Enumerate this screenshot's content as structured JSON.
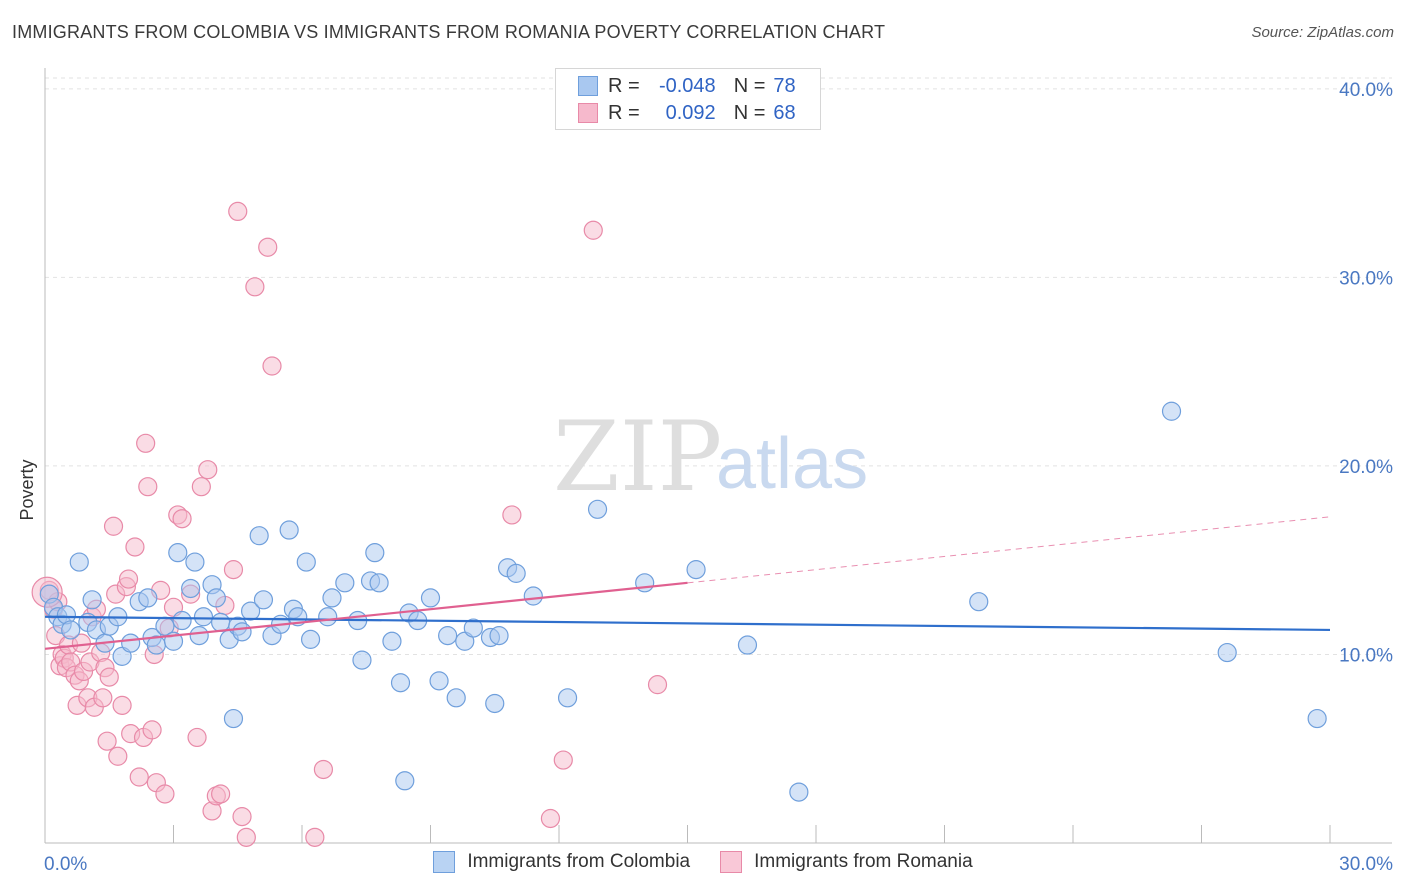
{
  "header": {
    "title": "IMMIGRANTS FROM COLOMBIA VS IMMIGRANTS FROM ROMANIA POVERTY CORRELATION CHART",
    "source": "Source: ZipAtlas.com"
  },
  "watermark": {
    "zip": "ZIP",
    "atlas": "atlas"
  },
  "legend_top": {
    "rows": [
      {
        "r_label": "R =",
        "r_value": "-0.048",
        "n_label": "N =",
        "n_value": "78"
      },
      {
        "r_label": "R =",
        "r_value": "0.092",
        "n_label": "N =",
        "n_value": "68"
      }
    ]
  },
  "legend_bottom": {
    "colombia": "Immigrants from Colombia",
    "romania": "Immigrants from Romania"
  },
  "colors": {
    "colombia_fill": "#a9c8f0",
    "colombia_stroke": "#6f9fdc",
    "colombia_line": "#2f6fcc",
    "romania_fill": "#f6b9cc",
    "romania_stroke": "#e88aa8",
    "romania_line": "#e06090",
    "tick_text": "#4a78c2"
  },
  "chart_data": {
    "type": "scatter",
    "title": "IMMIGRANTS FROM COLOMBIA VS IMMIGRANTS FROM ROMANIA POVERTY CORRELATION CHART",
    "xlabel": "",
    "ylabel": "Poverty",
    "xlim": [
      0,
      30
    ],
    "ylim": [
      0,
      41
    ],
    "x_tick_labels": [
      "0.0%",
      "30.0%"
    ],
    "y_ticks": [
      10,
      20,
      30,
      40
    ],
    "y_tick_labels": [
      "10.0%",
      "20.0%",
      "30.0%",
      "40.0%"
    ],
    "grid": true,
    "legend_position": "bottom",
    "series": [
      {
        "name": "Immigrants from Colombia",
        "r": -0.048,
        "n": 78,
        "trend": {
          "x0": 0,
          "y0": 12.0,
          "x1": 30,
          "y1": 11.3
        },
        "points": [
          [
            0.1,
            13.2
          ],
          [
            0.2,
            12.5
          ],
          [
            0.3,
            12.0
          ],
          [
            0.4,
            11.6
          ],
          [
            0.5,
            12.1
          ],
          [
            0.6,
            11.3
          ],
          [
            0.8,
            14.9
          ],
          [
            1.0,
            11.7
          ],
          [
            1.1,
            12.9
          ],
          [
            1.2,
            11.3
          ],
          [
            1.4,
            10.6
          ],
          [
            1.5,
            11.5
          ],
          [
            1.7,
            12.0
          ],
          [
            1.8,
            9.9
          ],
          [
            2.0,
            10.6
          ],
          [
            2.2,
            12.8
          ],
          [
            2.4,
            13.0
          ],
          [
            2.5,
            10.9
          ],
          [
            2.6,
            10.5
          ],
          [
            2.8,
            11.5
          ],
          [
            3.0,
            10.7
          ],
          [
            3.1,
            15.4
          ],
          [
            3.2,
            11.8
          ],
          [
            3.4,
            13.5
          ],
          [
            3.5,
            14.9
          ],
          [
            3.6,
            11.0
          ],
          [
            3.7,
            12.0
          ],
          [
            3.9,
            13.7
          ],
          [
            4.0,
            13.0
          ],
          [
            4.1,
            11.7
          ],
          [
            4.3,
            10.8
          ],
          [
            4.4,
            6.6
          ],
          [
            4.5,
            11.5
          ],
          [
            4.6,
            11.2
          ],
          [
            4.8,
            12.3
          ],
          [
            5.0,
            16.3
          ],
          [
            5.1,
            12.9
          ],
          [
            5.3,
            11.0
          ],
          [
            5.5,
            11.6
          ],
          [
            5.7,
            16.6
          ],
          [
            5.8,
            12.4
          ],
          [
            5.9,
            12.0
          ],
          [
            6.1,
            14.9
          ],
          [
            6.2,
            10.8
          ],
          [
            6.6,
            12.0
          ],
          [
            6.7,
            13.0
          ],
          [
            7.0,
            13.8
          ],
          [
            7.3,
            11.8
          ],
          [
            7.4,
            9.7
          ],
          [
            7.6,
            13.9
          ],
          [
            7.7,
            15.4
          ],
          [
            7.8,
            13.8
          ],
          [
            8.1,
            10.7
          ],
          [
            8.3,
            8.5
          ],
          [
            8.4,
            3.3
          ],
          [
            8.5,
            12.2
          ],
          [
            8.7,
            11.8
          ],
          [
            9.0,
            13.0
          ],
          [
            9.2,
            8.6
          ],
          [
            9.4,
            11.0
          ],
          [
            9.6,
            7.7
          ],
          [
            9.8,
            10.7
          ],
          [
            10.0,
            11.4
          ],
          [
            10.4,
            10.9
          ],
          [
            10.5,
            7.4
          ],
          [
            10.6,
            11.0
          ],
          [
            10.8,
            14.6
          ],
          [
            11.0,
            14.3
          ],
          [
            11.4,
            13.1
          ],
          [
            12.2,
            7.7
          ],
          [
            12.9,
            17.7
          ],
          [
            14.0,
            13.8
          ],
          [
            15.2,
            14.5
          ],
          [
            16.4,
            10.5
          ],
          [
            17.6,
            2.7
          ],
          [
            21.8,
            12.8
          ],
          [
            26.3,
            22.9
          ],
          [
            27.6,
            10.1
          ],
          [
            29.7,
            6.6
          ]
        ]
      },
      {
        "name": "Immigrants from Romania",
        "r": 0.092,
        "n": 68,
        "trend_solid": {
          "x0": 0,
          "y0": 10.3,
          "x1": 15.0,
          "y1": 13.8
        },
        "trend_dashed": {
          "x0": 15.0,
          "y0": 13.8,
          "x1": 30,
          "y1": 17.3
        },
        "points": [
          [
            0.1,
            13.4
          ],
          [
            0.2,
            12.4
          ],
          [
            0.25,
            11.0
          ],
          [
            0.3,
            12.8
          ],
          [
            0.35,
            9.4
          ],
          [
            0.4,
            10.0
          ],
          [
            0.45,
            9.8
          ],
          [
            0.5,
            9.3
          ],
          [
            0.55,
            10.5
          ],
          [
            0.6,
            9.6
          ],
          [
            0.7,
            8.9
          ],
          [
            0.75,
            7.3
          ],
          [
            0.8,
            8.6
          ],
          [
            0.85,
            10.6
          ],
          [
            0.9,
            9.1
          ],
          [
            1.0,
            7.7
          ],
          [
            1.05,
            9.6
          ],
          [
            1.1,
            12.0
          ],
          [
            1.15,
            7.2
          ],
          [
            1.2,
            12.4
          ],
          [
            1.3,
            10.1
          ],
          [
            1.35,
            7.7
          ],
          [
            1.4,
            9.3
          ],
          [
            1.45,
            5.4
          ],
          [
            1.5,
            8.8
          ],
          [
            1.6,
            16.8
          ],
          [
            1.65,
            13.2
          ],
          [
            1.7,
            4.6
          ],
          [
            1.8,
            7.3
          ],
          [
            1.9,
            13.6
          ],
          [
            1.95,
            14.0
          ],
          [
            2.0,
            5.8
          ],
          [
            2.1,
            15.7
          ],
          [
            2.2,
            3.5
          ],
          [
            2.3,
            5.6
          ],
          [
            2.35,
            21.2
          ],
          [
            2.4,
            18.9
          ],
          [
            2.5,
            6.0
          ],
          [
            2.55,
            10.0
          ],
          [
            2.6,
            3.2
          ],
          [
            2.7,
            13.4
          ],
          [
            2.8,
            2.6
          ],
          [
            2.9,
            11.4
          ],
          [
            3.0,
            12.5
          ],
          [
            3.1,
            17.4
          ],
          [
            3.2,
            17.2
          ],
          [
            3.4,
            13.2
          ],
          [
            3.55,
            5.6
          ],
          [
            3.65,
            18.9
          ],
          [
            3.8,
            19.8
          ],
          [
            3.9,
            1.7
          ],
          [
            4.0,
            2.5
          ],
          [
            4.1,
            2.6
          ],
          [
            4.2,
            12.6
          ],
          [
            4.4,
            14.5
          ],
          [
            4.5,
            33.5
          ],
          [
            4.6,
            1.4
          ],
          [
            4.7,
            0.3
          ],
          [
            4.9,
            29.5
          ],
          [
            5.2,
            31.6
          ],
          [
            5.3,
            25.3
          ],
          [
            6.3,
            0.3
          ],
          [
            6.5,
            3.9
          ],
          [
            10.9,
            17.4
          ],
          [
            11.8,
            1.3
          ],
          [
            12.1,
            4.4
          ],
          [
            12.8,
            32.5
          ],
          [
            14.3,
            8.4
          ]
        ]
      }
    ]
  }
}
